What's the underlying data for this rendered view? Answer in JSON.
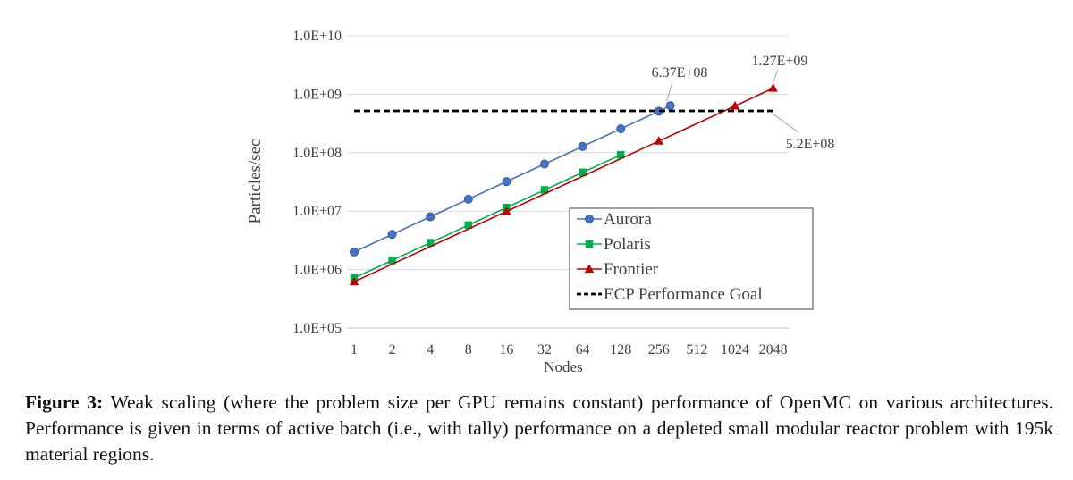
{
  "chart_data": {
    "type": "line",
    "yscale": "log",
    "title": "",
    "xlabel": "Nodes",
    "ylabel": "Particles/sec",
    "categories": [
      "1",
      "2",
      "4",
      "8",
      "16",
      "32",
      "64",
      "128",
      "256",
      "512",
      "1024",
      "2048"
    ],
    "y_ticks": [
      "1.0E+05",
      "1.0E+06",
      "1.0E+07",
      "1.0E+08",
      "1.0E+09",
      "1.0E+10"
    ],
    "ylim": [
      100000,
      10000000000
    ],
    "series": [
      {
        "name": "Aurora",
        "color": "#4472c4",
        "marker": "circle",
        "x": [
          0,
          1,
          2,
          3,
          4,
          5,
          6,
          7,
          8,
          8.3
        ],
        "values": [
          2000000,
          4000000,
          8000000,
          16000000,
          32000000,
          64000000,
          128000000,
          256000000,
          512000000,
          637000000
        ]
      },
      {
        "name": "Polaris",
        "color": "#00b050",
        "marker": "square",
        "x": [
          0,
          1,
          2,
          3,
          4,
          5,
          6,
          7
        ],
        "values": [
          720000,
          1440000,
          2880000,
          5760000,
          11500000,
          23000000,
          46000000,
          92000000
        ]
      },
      {
        "name": "Frontier",
        "color": "#c00000",
        "marker": "triangle",
        "x": [
          0,
          4,
          8,
          10,
          11
        ],
        "values": [
          620000,
          9900000,
          158000000,
          630000000,
          1270000000
        ]
      },
      {
        "name": "ECP Performance Goal",
        "color": "#000000",
        "dashed": true,
        "x": [
          0,
          11
        ],
        "values": [
          520000000,
          520000000
        ]
      }
    ],
    "annotations": [
      {
        "text": "6.37E+08",
        "series": "Aurora"
      },
      {
        "text": "1.27E+09",
        "series": "Frontier"
      },
      {
        "text": "5.2E+08",
        "series": "ECP Performance Goal"
      }
    ],
    "legend_position": "bottom-right"
  },
  "caption": {
    "label": "Figure 3:",
    "text": "Weak scaling (where the problem size per GPU remains constant) performance of OpenMC on various architectures. Performance is given in terms of active batch (i.e., with tally) performance on a depleted small modular reactor problem with 195k material regions."
  }
}
